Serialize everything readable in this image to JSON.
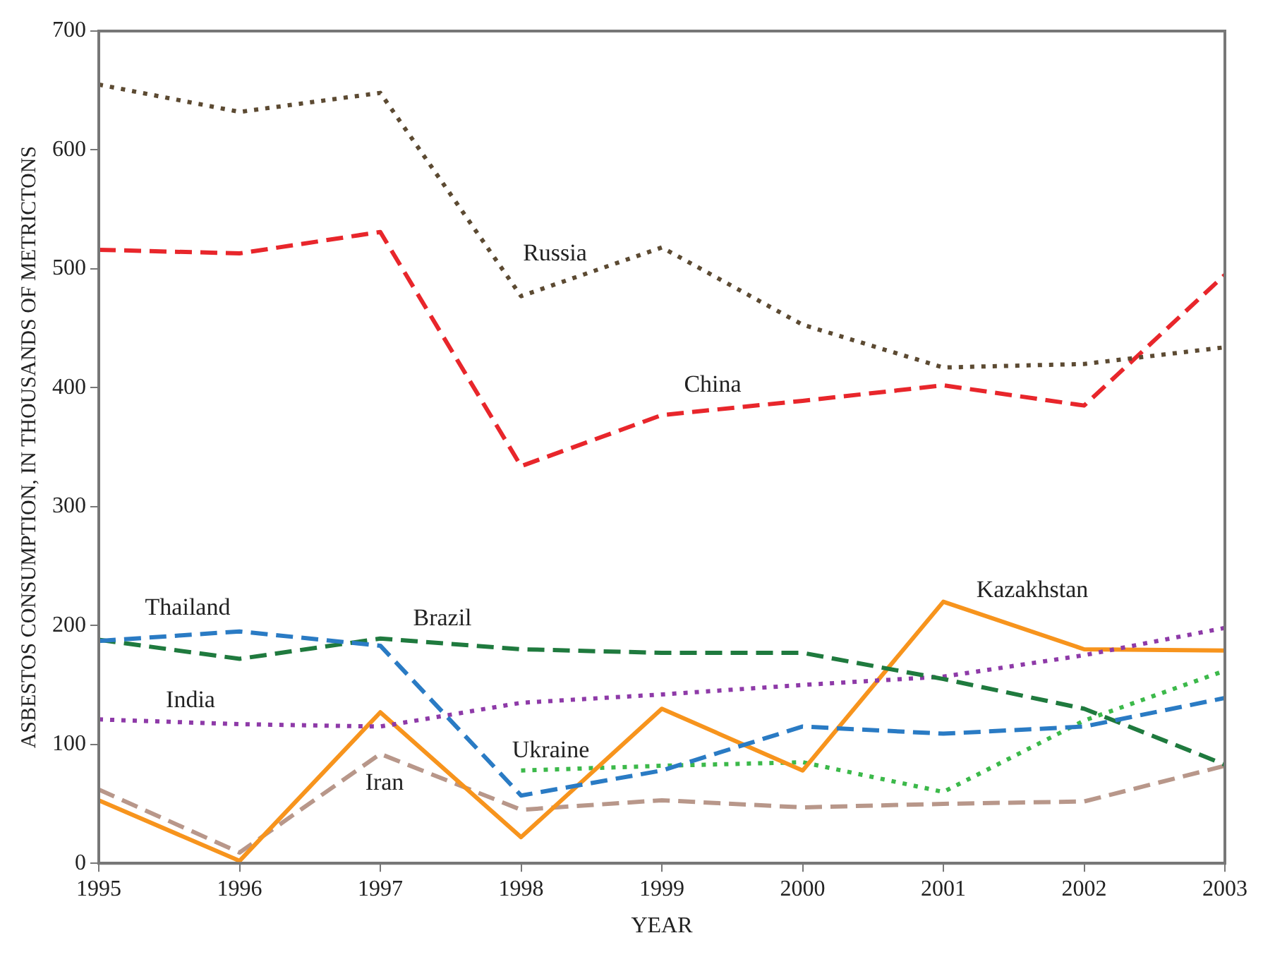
{
  "chart_data": {
    "type": "line",
    "xlabel": "YEAR",
    "ylabel": "ASBESTOS CONSUMPTION, IN THOUSANDS OF METRICTONS",
    "x": [
      1995,
      1996,
      1997,
      1998,
      1999,
      2000,
      2001,
      2002,
      2003
    ],
    "xlim": [
      1995,
      2003
    ],
    "xticks": [
      1995,
      1996,
      1997,
      1998,
      1999,
      2000,
      2001,
      2002,
      2003
    ],
    "ylim": [
      0,
      700
    ],
    "yticks": [
      0,
      100,
      200,
      300,
      400,
      500,
      600,
      700
    ],
    "grid": false,
    "legend": false,
    "marker": "none",
    "series": [
      {
        "name": "Russia",
        "color": "#5c4a32",
        "line_style": "dotted",
        "values": [
          655,
          632,
          648,
          477,
          518,
          453,
          417,
          420,
          434
        ]
      },
      {
        "name": "China",
        "color": "#e8262b",
        "line_style": "dashed",
        "values": [
          516,
          513,
          531,
          334,
          377,
          389,
          402,
          385,
          495
        ]
      },
      {
        "name": "Thailand",
        "color": "#2a7bc4",
        "line_style": "dashed",
        "values": [
          187,
          195,
          183,
          57,
          78,
          115,
          109,
          115,
          139
        ]
      },
      {
        "name": "Brazil",
        "color": "#1f7a3e",
        "line_style": "dashed",
        "values": [
          188,
          172,
          189,
          180,
          177,
          177,
          155,
          130,
          83
        ]
      },
      {
        "name": "India",
        "color": "#8e3aa8",
        "line_style": "dotted",
        "values": [
          121,
          117,
          115,
          135,
          142,
          150,
          157,
          175,
          198
        ]
      },
      {
        "name": "Kazakhstan",
        "color": "#f7941d",
        "line_style": "solid",
        "values": [
          53,
          2,
          127,
          22,
          130,
          78,
          220,
          180,
          179
        ]
      },
      {
        "name": "Ukraine",
        "color": "#3cb94a",
        "line_style": "dotted",
        "values": [
          null,
          null,
          null,
          78,
          82,
          85,
          60,
          120,
          162
        ]
      },
      {
        "name": "Iran",
        "color": "#b8978a",
        "line_style": "dashed",
        "values": [
          62,
          9,
          92,
          45,
          53,
          47,
          50,
          52,
          82
        ]
      }
    ]
  }
}
